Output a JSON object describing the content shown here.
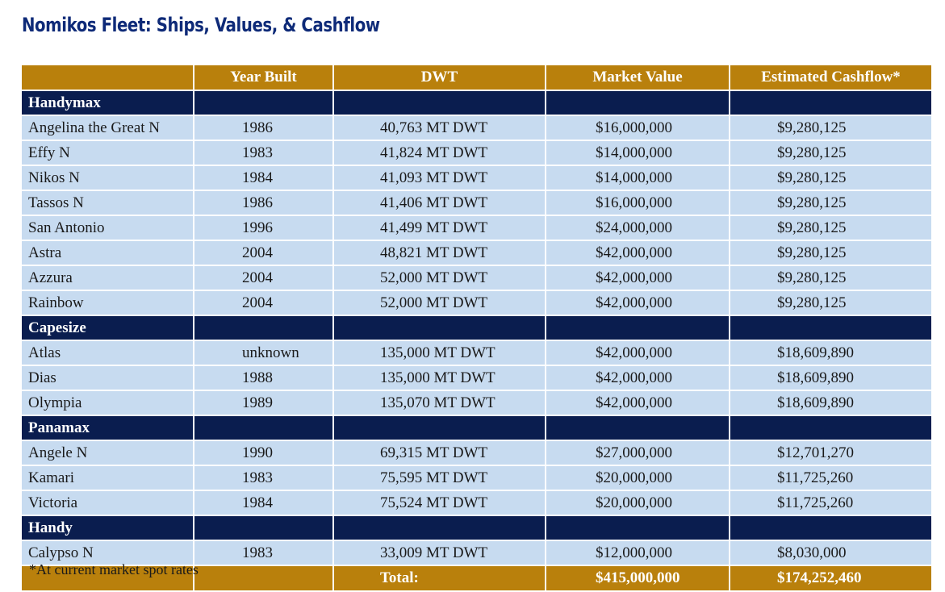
{
  "title": "Nomikos Fleet: Ships, Values, & Cashflow",
  "colors": {
    "title": "#0e2a78",
    "header_bg": "#b9800c",
    "category_bg": "#0a1d4f",
    "row_bg": "#c7dbf0"
  },
  "table": {
    "headers": [
      "",
      "Year Built",
      "DWT",
      "Market Value",
      "Estimated Cashflow*"
    ],
    "groups": [
      {
        "name": "Handymax",
        "ships": [
          {
            "name": "Angelina the Great N",
            "year": "1986",
            "dwt": "40,763 MT DWT",
            "value": "$16,000,000",
            "cashflow": "$9,280,125"
          },
          {
            "name": "Effy N",
            "year": "1983",
            "dwt": "41,824 MT DWT",
            "value": "$14,000,000",
            "cashflow": "$9,280,125"
          },
          {
            "name": "Nikos N",
            "year": "1984",
            "dwt": "41,093 MT DWT",
            "value": "$14,000,000",
            "cashflow": "$9,280,125"
          },
          {
            "name": "Tassos N",
            "year": "1986",
            "dwt": "41,406 MT DWT",
            "value": "$16,000,000",
            "cashflow": "$9,280,125"
          },
          {
            "name": "San Antonio",
            "year": "1996",
            "dwt": "41,499 MT DWT",
            "value": "$24,000,000",
            "cashflow": "$9,280,125"
          },
          {
            "name": "Astra",
            "year": "2004",
            "dwt": "48,821 MT DWT",
            "value": "$42,000,000",
            "cashflow": "$9,280,125"
          },
          {
            "name": "Azzura",
            "year": "2004",
            "dwt": "52,000 MT DWT",
            "value": "$42,000,000",
            "cashflow": "$9,280,125"
          },
          {
            "name": "Rainbow",
            "year": "2004",
            "dwt": "52,000 MT DWT",
            "value": "$42,000,000",
            "cashflow": "$9,280,125"
          }
        ]
      },
      {
        "name": "Capesize",
        "ships": [
          {
            "name": "Atlas",
            "year": "unknown",
            "dwt": "135,000 MT DWT",
            "value": "$42,000,000",
            "cashflow": "$18,609,890"
          },
          {
            "name": "Dias",
            "year": "1988",
            "dwt": "135,000 MT DWT",
            "value": "$42,000,000",
            "cashflow": "$18,609,890"
          },
          {
            "name": "Olympia",
            "year": "1989",
            "dwt": "135,070 MT DWT",
            "value": "$42,000,000",
            "cashflow": "$18,609,890"
          }
        ]
      },
      {
        "name": "Panamax",
        "ships": [
          {
            "name": "Angele N",
            "year": "1990",
            "dwt": "69,315 MT DWT",
            "value": "$27,000,000",
            "cashflow": "$12,701,270"
          },
          {
            "name": "Kamari",
            "year": "1983",
            "dwt": "75,595 MT DWT",
            "value": "$20,000,000",
            "cashflow": "$11,725,260"
          },
          {
            "name": "Victoria",
            "year": "1984",
            "dwt": "75,524 MT DWT",
            "value": "$20,000,000",
            "cashflow": "$11,725,260"
          }
        ]
      },
      {
        "name": "Handy",
        "ships": [
          {
            "name": "Calypso N",
            "year": "1983",
            "dwt": "33,009 MT DWT",
            "value": "$12,000,000",
            "cashflow": "$8,030,000"
          }
        ]
      }
    ],
    "total": {
      "label": "Total:",
      "value": "$415,000,000",
      "cashflow": "$174,252,460"
    }
  },
  "footnote": "*At current market spot rates"
}
